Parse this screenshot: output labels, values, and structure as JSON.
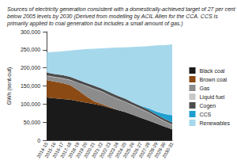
{
  "chart_data": {
    "type": "area",
    "title": "Sources of electricity generation consistent with a domestically-achieved target of 27 per cent below 2005 levels by 2030 (Derived from modelling by ACIL Allen for the CCA. CCS is primarily applied to coal generation but includes a small amount of gas.)",
    "y_label": "GWh (sent-out)",
    "stacked": true,
    "grid": false,
    "legend": "right",
    "categories": [
      "2014-15",
      "2015-16",
      "2016-17",
      "2017-18",
      "2018-19",
      "2019-20",
      "2020-21",
      "2021-22",
      "2022-23",
      "2023-24",
      "2024-25",
      "2025-26",
      "2026-27",
      "2027-28",
      "2028-29",
      "2029-30",
      "2030-31"
    ],
    "ylim": [
      0,
      300000
    ],
    "yticks": [
      0,
      {
        "value": 50000,
        "label": "50,000"
      },
      {
        "value": 100000,
        "label": "100,000"
      },
      {
        "value": 150000,
        "label": "150,000"
      },
      {
        "value": 200000,
        "label": "200,000"
      },
      {
        "value": 250000,
        "label": "250,000"
      },
      {
        "value": 300000,
        "label": "300,000"
      }
    ],
    "series": [
      {
        "name": "Black coal",
        "color": "#1a1a1a",
        "values": [
          118000,
          116000,
          114000,
          112000,
          108000,
          104000,
          100000,
          96000,
          90000,
          84000,
          78000,
          70000,
          62000,
          54000,
          46000,
          38000,
          30000
        ]
      },
      {
        "name": "Brown coal",
        "color": "#8b4a14",
        "values": [
          48000,
          46000,
          44000,
          40000,
          30000,
          18000,
          8000,
          4000,
          2000,
          0,
          0,
          0,
          0,
          0,
          0,
          0,
          0
        ]
      },
      {
        "name": "Gas",
        "color": "#8c8c8c",
        "values": [
          12000,
          12000,
          13000,
          14000,
          20000,
          28000,
          34000,
          34000,
          32000,
          30000,
          28000,
          26000,
          24000,
          22000,
          18000,
          14000,
          12000
        ]
      },
      {
        "name": "Liquid fuel",
        "color": "#c8c8c8",
        "values": [
          1000,
          1000,
          1000,
          1000,
          1000,
          1000,
          1000,
          1000,
          1000,
          1000,
          1000,
          1000,
          1000,
          1000,
          1000,
          1000,
          1000
        ]
      },
      {
        "name": "Cogen",
        "color": "#4d4d4d",
        "values": [
          8000,
          8000,
          8000,
          8000,
          8000,
          8000,
          8000,
          8000,
          8000,
          8000,
          8000,
          7000,
          7000,
          7000,
          6000,
          6000,
          6000
        ]
      },
      {
        "name": "CCS",
        "color": "#1f9fd0",
        "values": [
          0,
          0,
          0,
          0,
          0,
          0,
          0,
          0,
          0,
          0,
          0,
          0,
          1000,
          4000,
          8000,
          14000,
          20000
        ]
      },
      {
        "name": "Renewables",
        "color": "#a6d8ec",
        "values": [
          56000,
          61000,
          66000,
          73000,
          83000,
          93000,
          102000,
          111000,
          122000,
          133000,
          142000,
          154000,
          164000,
          172000,
          183000,
          190000,
          196000
        ]
      }
    ]
  }
}
